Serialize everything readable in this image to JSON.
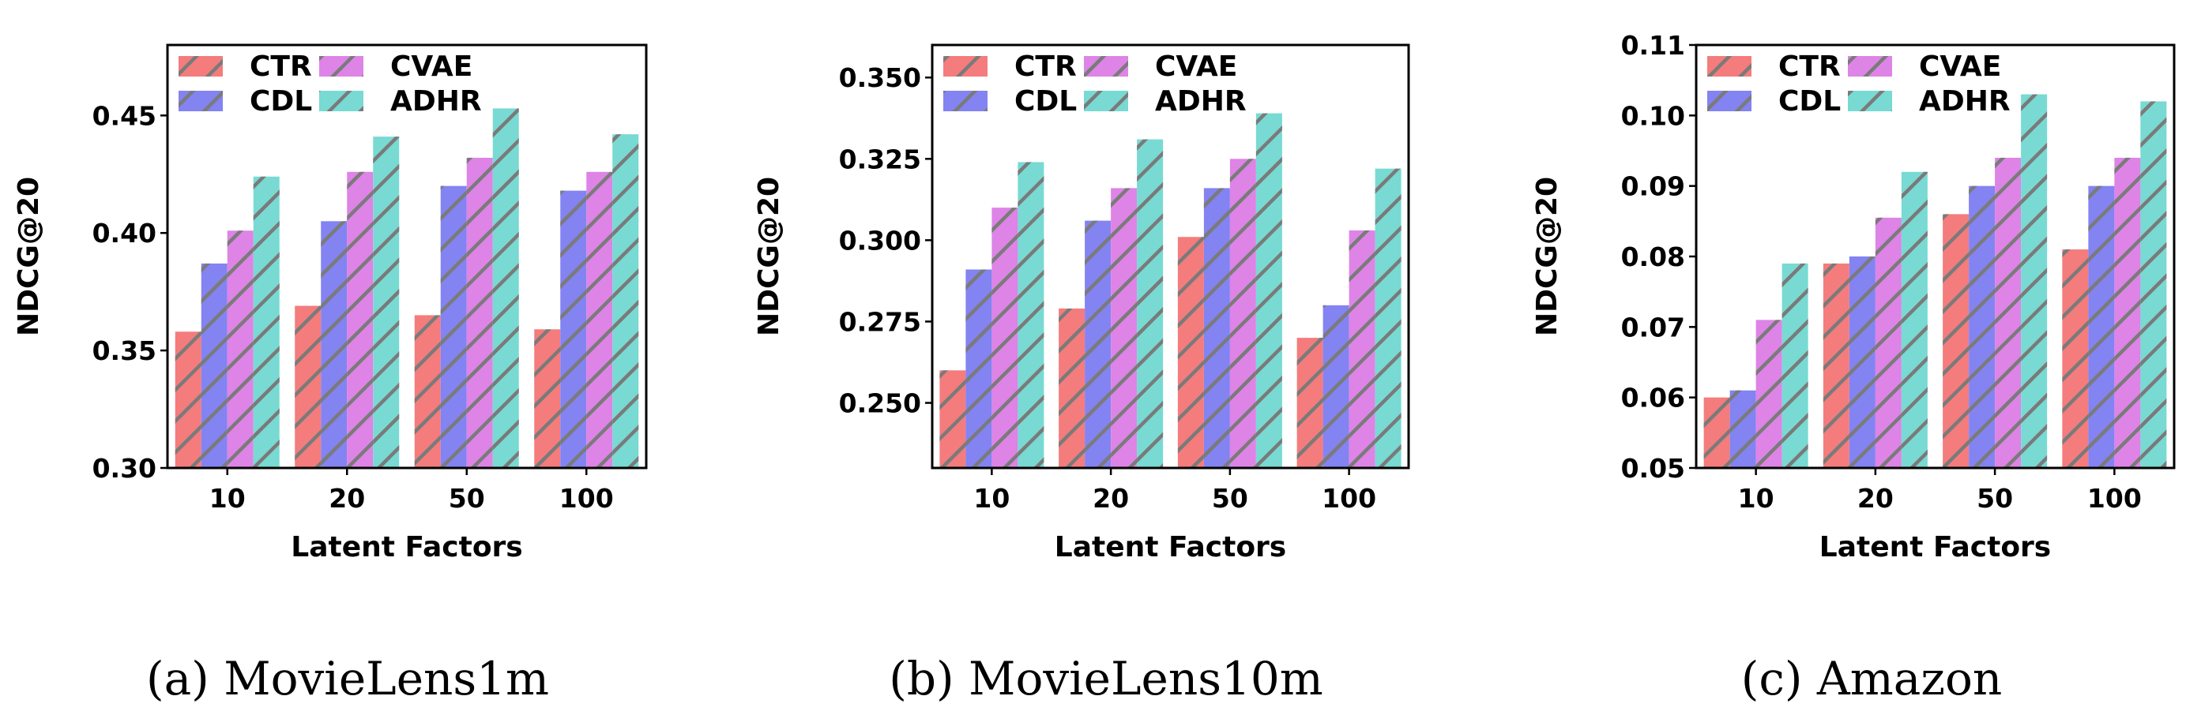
{
  "colors": {
    "CTR": "#f47c7c",
    "CDL": "#8383f2",
    "CVAE": "#dd84e6",
    "ADHR": "#78dad2",
    "hatch": "#7a7a7a"
  },
  "chart_data": [
    {
      "type": "bar",
      "caption": "(a)  MovieLens1m",
      "xlabel": "Latent Factors",
      "ylabel": "NDCG@20",
      "categories": [
        "10",
        "20",
        "50",
        "100"
      ],
      "ylim": [
        0.3,
        0.48
      ],
      "yticks": [
        0.3,
        0.35,
        0.4,
        0.45
      ],
      "ytick_labels": [
        "0.30",
        "0.35",
        "0.40",
        "0.45"
      ],
      "legend_position": "top-left",
      "series": [
        {
          "name": "CTR",
          "values": [
            0.358,
            0.369,
            0.365,
            0.359
          ]
        },
        {
          "name": "CDL",
          "values": [
            0.387,
            0.405,
            0.42,
            0.418
          ]
        },
        {
          "name": "CVAE",
          "values": [
            0.401,
            0.426,
            0.432,
            0.426
          ]
        },
        {
          "name": "ADHR",
          "values": [
            0.424,
            0.441,
            0.453,
            0.442
          ]
        }
      ]
    },
    {
      "type": "bar",
      "caption": "(b)  MovieLens10m",
      "xlabel": "Latent Factors",
      "ylabel": "NDCG@20",
      "categories": [
        "10",
        "20",
        "50",
        "100"
      ],
      "ylim": [
        0.23,
        0.36
      ],
      "yticks": [
        0.25,
        0.275,
        0.3,
        0.325,
        0.35
      ],
      "ytick_labels": [
        "0.250",
        "0.275",
        "0.300",
        "0.325",
        "0.350"
      ],
      "legend_position": "top-left",
      "series": [
        {
          "name": "CTR",
          "values": [
            0.26,
            0.279,
            0.301,
            0.27
          ]
        },
        {
          "name": "CDL",
          "values": [
            0.291,
            0.306,
            0.316,
            0.28
          ]
        },
        {
          "name": "CVAE",
          "values": [
            0.31,
            0.316,
            0.325,
            0.303
          ]
        },
        {
          "name": "ADHR",
          "values": [
            0.324,
            0.331,
            0.339,
            0.322
          ]
        }
      ]
    },
    {
      "type": "bar",
      "caption": "(c)  Amazon",
      "xlabel": "Latent Factors",
      "ylabel": "NDCG@20",
      "categories": [
        "10",
        "20",
        "50",
        "100"
      ],
      "ylim": [
        0.05,
        0.11
      ],
      "yticks": [
        0.05,
        0.06,
        0.07,
        0.08,
        0.09,
        0.1,
        0.11
      ],
      "ytick_labels": [
        "0.05",
        "0.06",
        "0.07",
        "0.08",
        "0.09",
        "0.10",
        "0.11"
      ],
      "legend_position": "top-left",
      "series": [
        {
          "name": "CTR",
          "values": [
            0.06,
            0.079,
            0.086,
            0.081
          ]
        },
        {
          "name": "CDL",
          "values": [
            0.061,
            0.08,
            0.09,
            0.09
          ]
        },
        {
          "name": "CVAE",
          "values": [
            0.071,
            0.0855,
            0.094,
            0.094
          ]
        },
        {
          "name": "ADHR",
          "values": [
            0.079,
            0.092,
            0.103,
            0.102
          ]
        }
      ]
    }
  ]
}
